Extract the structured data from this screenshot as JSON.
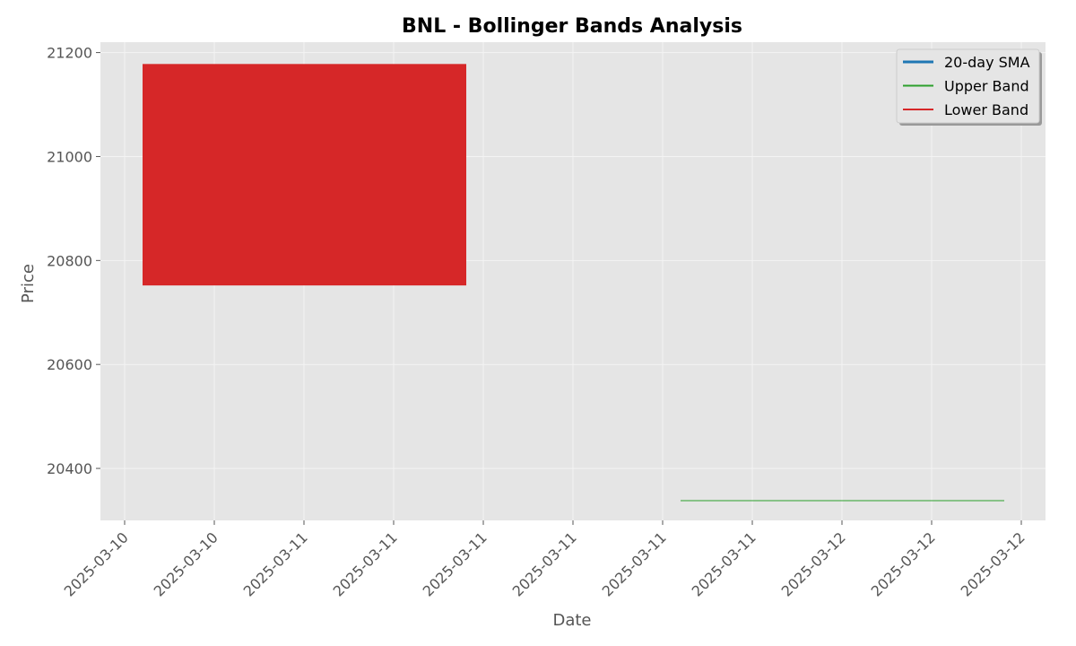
{
  "chart_data": {
    "type": "line",
    "title": "BNL - Bollinger Bands Analysis",
    "xlabel": "Date",
    "ylabel": "Price",
    "ylim": [
      20300,
      21220
    ],
    "y_ticks": [
      20400,
      20600,
      20800,
      21000,
      21200
    ],
    "x_tick_labels": [
      "2025-03-10",
      "2025-03-10",
      "2025-03-11",
      "2025-03-11",
      "2025-03-11",
      "2025-03-11",
      "2025-03-11",
      "2025-03-11",
      "2025-03-12",
      "2025-03-12",
      "2025-03-12"
    ],
    "grid": true,
    "legend_position": "top-right",
    "series": [
      {
        "name": "20-day SMA",
        "color": "#1f77b4",
        "values": []
      },
      {
        "name": "Upper Band",
        "color": "#2ca02c",
        "values": [
          20338,
          20338
        ]
      },
      {
        "name": "Lower Band",
        "color": "#d62728",
        "values": []
      }
    ],
    "fill_between": {
      "color": "#d62728",
      "low": 20752,
      "high": 21178
    },
    "colors": {
      "plot_background": "#e5e5e5",
      "grid": "#f4f4f4",
      "axes_text": "#555555"
    }
  }
}
